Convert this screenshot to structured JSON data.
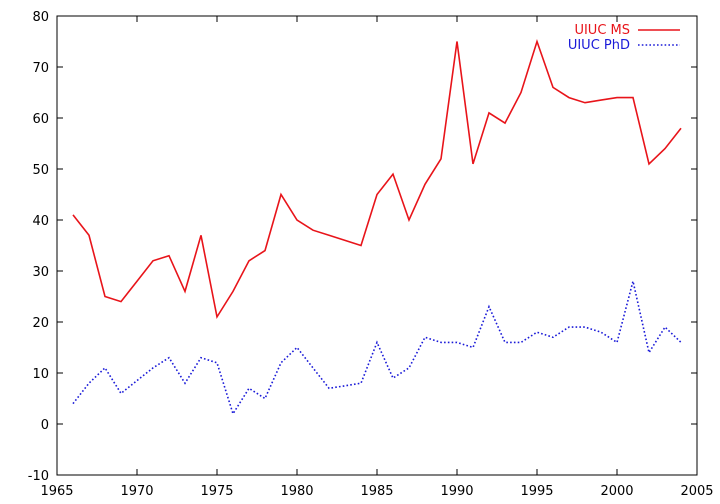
{
  "chart_data": {
    "type": "line",
    "title": "",
    "xlabel": "",
    "ylabel": "",
    "xlim": [
      1965,
      2005
    ],
    "ylim": [
      -10,
      80
    ],
    "xticks": [
      1965,
      1970,
      1975,
      1980,
      1985,
      1990,
      1995,
      2000,
      2005
    ],
    "yticks": [
      -10,
      0,
      10,
      20,
      30,
      40,
      50,
      60,
      70,
      80
    ],
    "grid": false,
    "legend_position": "top-right",
    "series": [
      {
        "name": "UIUC MS",
        "color": "#e8141a",
        "style": "solid",
        "x": [
          1966,
          1967,
          1968,
          1969,
          1970,
          1971,
          1972,
          1973,
          1974,
          1975,
          1976,
          1977,
          1978,
          1979,
          1980,
          1981,
          1982,
          1983,
          1984,
          1985,
          1986,
          1987,
          1988,
          1989,
          1990,
          1991,
          1992,
          1993,
          1994,
          1995,
          1996,
          1997,
          1998,
          1999,
          2000,
          2001,
          2002,
          2003,
          2004
        ],
        "values": [
          41,
          37,
          25,
          24,
          28,
          32,
          33,
          26,
          37,
          21,
          26,
          32,
          34,
          45,
          40,
          38,
          37,
          36,
          35,
          45,
          49,
          40,
          47,
          52,
          75,
          51,
          61,
          59,
          65,
          75,
          66,
          64,
          63,
          63.5,
          64,
          64,
          51,
          54,
          58
        ]
      },
      {
        "name": "UIUC PhD",
        "color": "#1a1ad8",
        "style": "dotted",
        "x": [
          1966,
          1967,
          1968,
          1969,
          1970,
          1971,
          1972,
          1973,
          1974,
          1975,
          1976,
          1977,
          1978,
          1979,
          1980,
          1981,
          1982,
          1983,
          1984,
          1985,
          1986,
          1987,
          1988,
          1989,
          1990,
          1991,
          1992,
          1993,
          1994,
          1995,
          1996,
          1997,
          1998,
          1999,
          2000,
          2001,
          2002,
          2003,
          2004
        ],
        "values": [
          4,
          8,
          11,
          6,
          8.5,
          11,
          13,
          8,
          13,
          12,
          2,
          7,
          5,
          12,
          15,
          11,
          7,
          7.5,
          8,
          16,
          9,
          11,
          17,
          16,
          16,
          15,
          23,
          16,
          16,
          18,
          17,
          19,
          19,
          18,
          16,
          28,
          14,
          19,
          16
        ]
      }
    ]
  }
}
